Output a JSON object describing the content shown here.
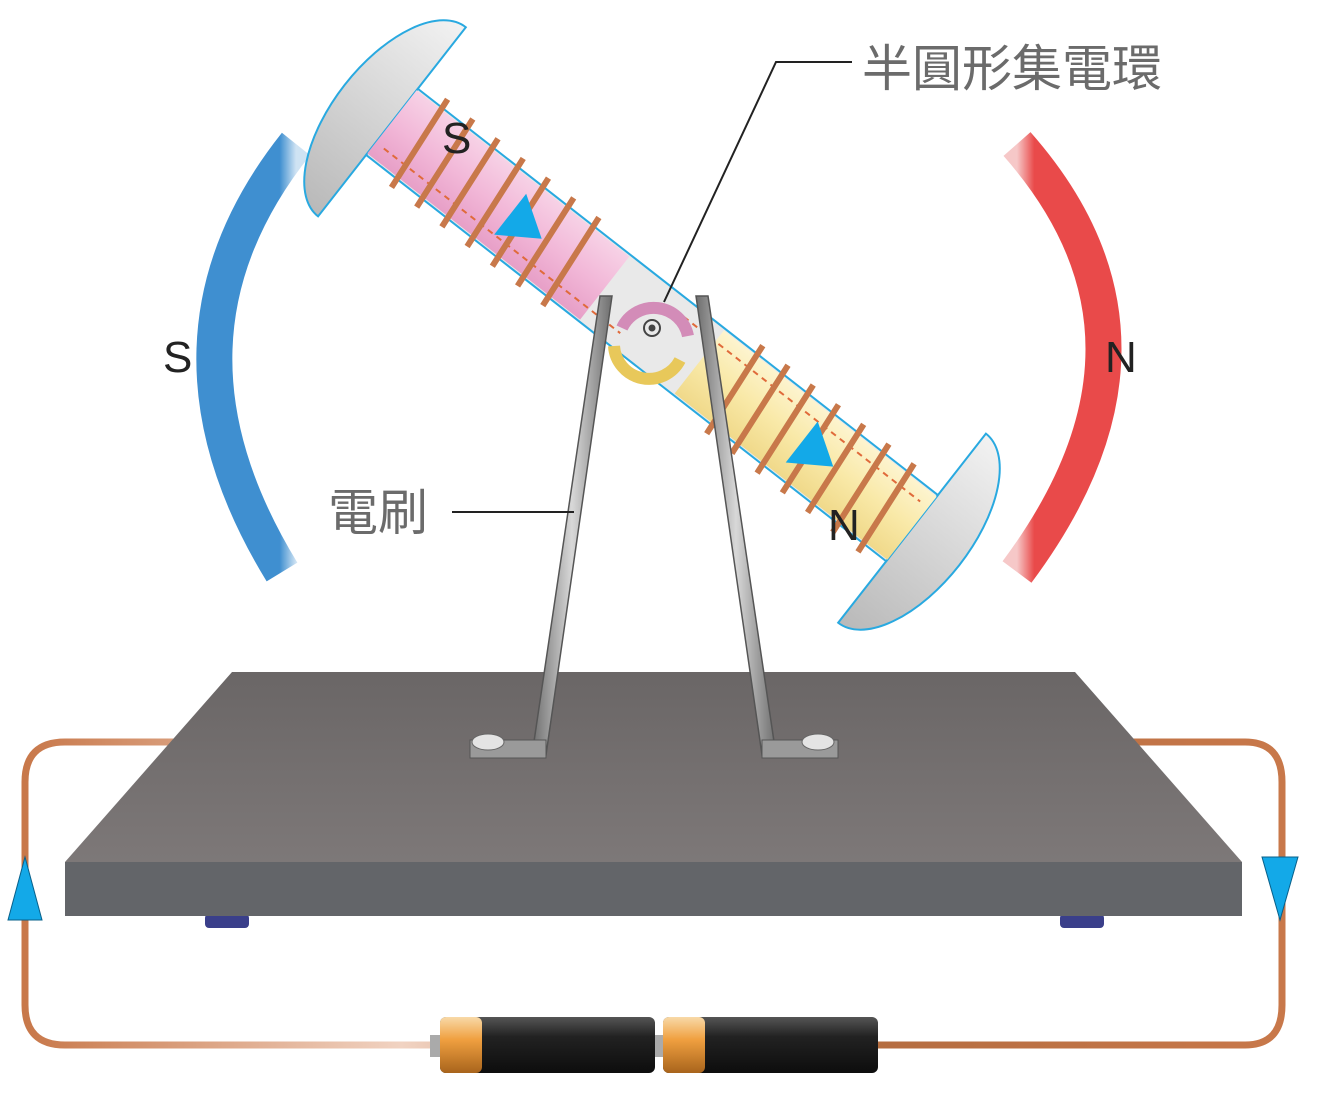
{
  "labels": {
    "commutator": "半圓形集電環",
    "brush": "電刷"
  },
  "field_magnet": {
    "left_pole": "S",
    "right_pole": "N",
    "left_color": "#3f8fd0",
    "right_color": "#e94a4a"
  },
  "armature": {
    "top_pole": "S",
    "bottom_pole": "N",
    "top_core_color": "#f2b8d8",
    "bottom_core_color": "#f9e9a8",
    "coil_color": "#c8784a"
  },
  "colors": {
    "base": "#767272",
    "wire": "#c8784a",
    "arrow": "#13a9e8",
    "ring_a": "#d38cb8",
    "ring_b": "#e8c85a"
  }
}
